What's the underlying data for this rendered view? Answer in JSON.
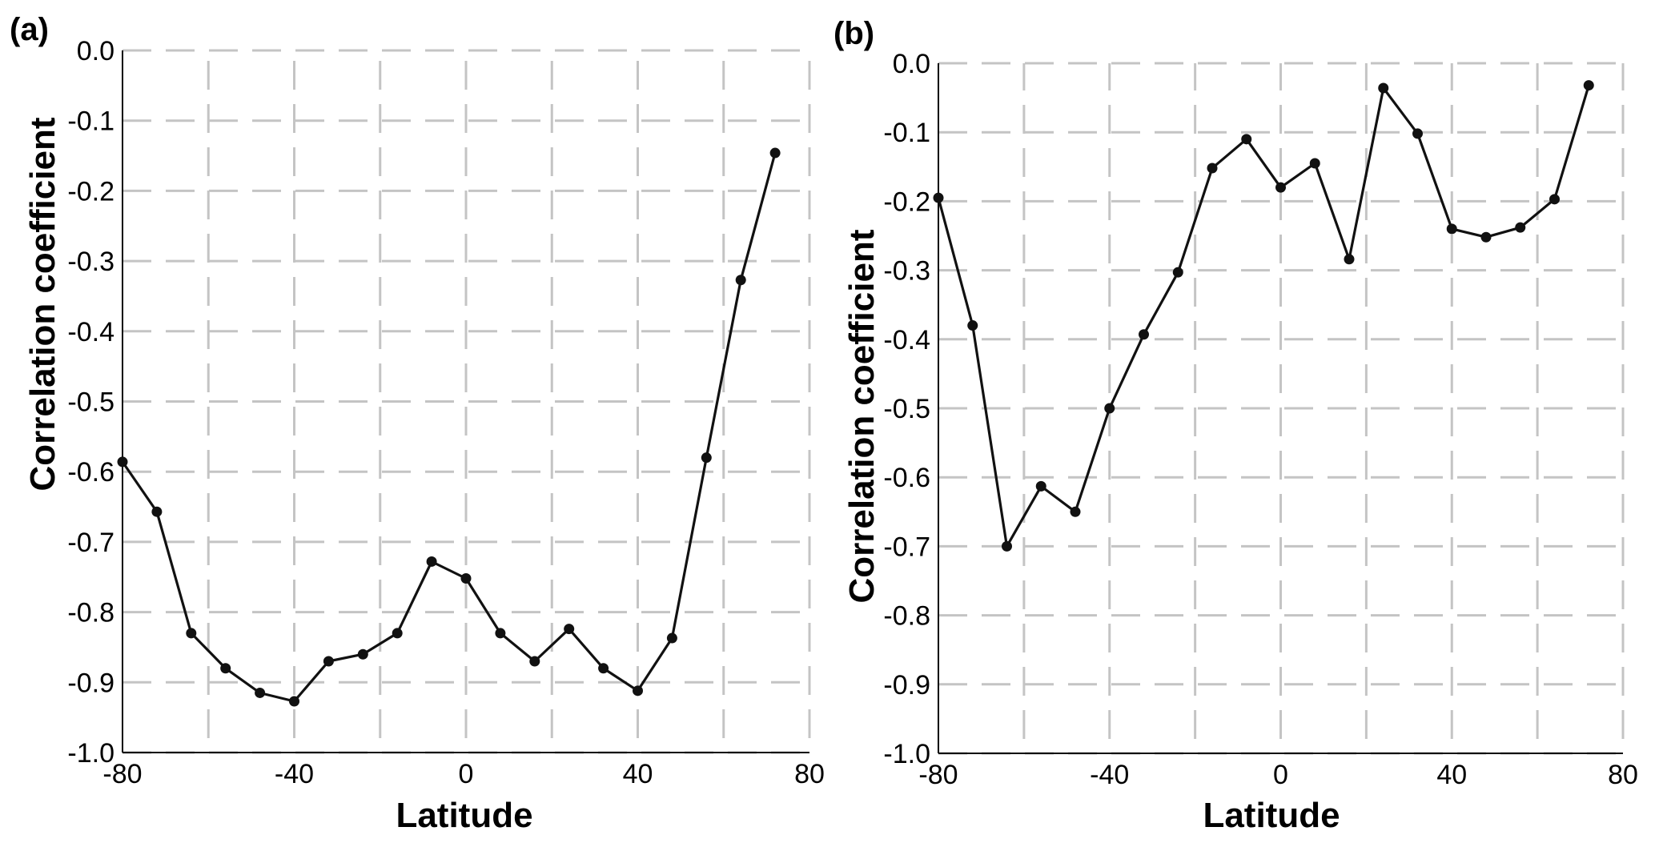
{
  "chart_data": [
    {
      "type": "line",
      "panel_label": "(a)",
      "xlabel": "Latitude",
      "ylabel": "Correlation coefficient",
      "xlim": [
        -80,
        80
      ],
      "ylim": [
        -1.0,
        0.0
      ],
      "xticks": [
        -80,
        -40,
        0,
        40,
        80
      ],
      "yticks": [
        "0.0",
        "-0.1",
        "-0.2",
        "-0.3",
        "-0.4",
        "-0.5",
        "-0.6",
        "-0.7",
        "-0.8",
        "-0.9",
        "-1.0"
      ],
      "grid": true,
      "x": [
        -80,
        -72,
        -64,
        -56,
        -48,
        -40,
        -32,
        -24,
        -16,
        -8,
        0,
        8,
        16,
        24,
        32,
        40,
        48,
        56,
        64,
        72,
        80
      ],
      "y": [
        -0.586,
        -0.657,
        -0.83,
        -0.88,
        -0.915,
        -0.927,
        -0.87,
        -0.86,
        -0.83,
        -0.728,
        -0.752,
        -0.83,
        -0.87,
        -0.824,
        -0.88,
        -0.912,
        -0.837,
        -0.58,
        -0.327,
        -0.146,
        null
      ]
    },
    {
      "type": "line",
      "panel_label": "(b)",
      "xlabel": "Latitude",
      "ylabel": "Correlation coefficient",
      "xlim": [
        -80,
        80
      ],
      "ylim": [
        -1.0,
        0.0
      ],
      "xticks": [
        -80,
        -40,
        0,
        40,
        80
      ],
      "yticks": [
        "0.0",
        "-0.1",
        "-0.2",
        "-0.3",
        "-0.4",
        "-0.5",
        "-0.6",
        "-0.7",
        "-0.8",
        "-0.9",
        "-1.0"
      ],
      "grid": true,
      "x": [
        -80,
        -72,
        -64,
        -56,
        -48,
        -40,
        -32,
        -24,
        -16,
        -8,
        0,
        8,
        16,
        24,
        32,
        40,
        48,
        56,
        64,
        72,
        80
      ],
      "y": [
        -0.195,
        -0.38,
        -0.7,
        -0.613,
        -0.65,
        -0.5,
        -0.393,
        -0.303,
        -0.152,
        -0.11,
        -0.18,
        -0.145,
        -0.284,
        -0.036,
        -0.102,
        -0.24,
        -0.252,
        -0.238,
        -0.197,
        -0.032,
        null
      ]
    }
  ]
}
